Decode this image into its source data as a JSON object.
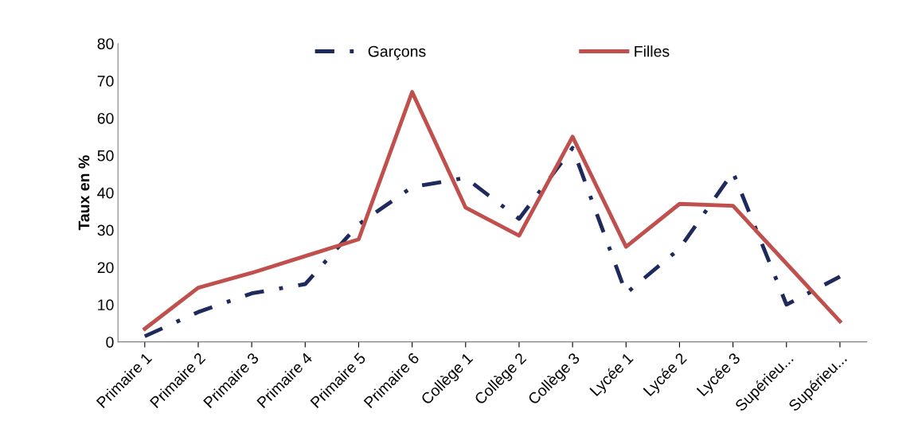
{
  "chart_data": {
    "type": "line",
    "ylabel": "Taux en %",
    "categories": [
      "Primaire 1",
      "Primaire 2",
      "Primaire 3",
      "Primaire 4",
      "Primaire 5",
      "Primaire 6",
      "Collège 1",
      "Collège 2",
      "Collège 3",
      "Lycée 1",
      "Lycée 2",
      "Lycée 3",
      "Supérieu...",
      "Supérieu..."
    ],
    "series": [
      {
        "name": "Garçons",
        "color": "#1f2a5c",
        "line_style": "dashdot",
        "values": [
          1.5,
          8,
          13,
          15.5,
          31.5,
          41.5,
          44,
          33,
          52,
          13,
          25,
          45.5,
          10,
          17.5
        ]
      },
      {
        "name": "Filles",
        "color": "#c0504d",
        "line_style": "solid",
        "values": [
          3.5,
          14.5,
          18.5,
          23,
          27.5,
          67,
          36,
          28.5,
          55,
          25.5,
          37,
          36.5,
          21,
          5.5
        ]
      }
    ],
    "ylim": [
      0,
      80
    ],
    "yticks": [
      0,
      10,
      20,
      30,
      40,
      50,
      60,
      70,
      80
    ],
    "grid": false,
    "legend": "top",
    "marker": "none"
  }
}
